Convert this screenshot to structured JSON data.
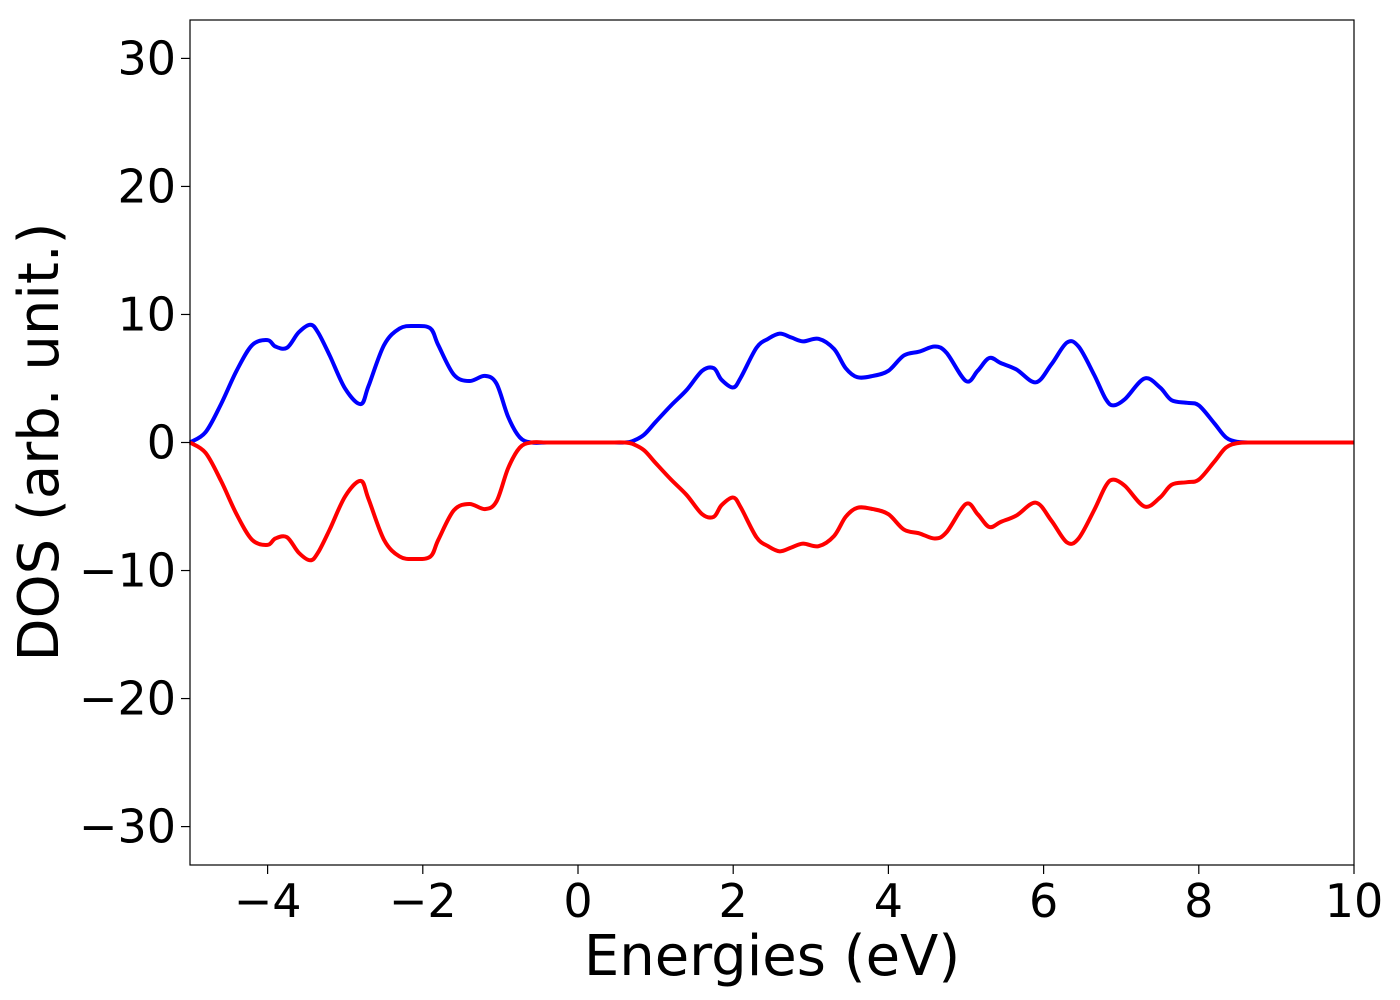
{
  "chart_data": {
    "type": "line",
    "title": "",
    "xlabel": "Energies (eV)",
    "ylabel": "DOS (arb. unit.)",
    "xlim": [
      -5,
      10
    ],
    "ylim": [
      -33,
      33
    ],
    "xticks": [
      -4,
      -2,
      0,
      2,
      4,
      6,
      8,
      10
    ],
    "xtick_labels": [
      "−4",
      "−2",
      "0",
      "2",
      "4",
      "6",
      "8",
      "10"
    ],
    "yticks": [
      30,
      20,
      10,
      0,
      -10,
      -20,
      -30
    ],
    "ytick_labels": [
      "30",
      "20",
      "10",
      "0",
      "−10",
      "−20",
      "−30"
    ],
    "grid": false,
    "legend": null,
    "series": [
      {
        "color": "#0000ff",
        "x": [
          -5.0,
          -4.8,
          -4.6,
          -4.4,
          -4.2,
          -4.0,
          -3.9,
          -3.75,
          -3.6,
          -3.45,
          -3.35,
          -3.2,
          -3.0,
          -2.8,
          -2.7,
          -2.5,
          -2.3,
          -2.1,
          -1.9,
          -1.8,
          -1.6,
          -1.4,
          -1.2,
          -1.05,
          -0.9,
          -0.75,
          -0.6,
          -0.4,
          -0.2,
          0.0,
          0.2,
          0.4,
          0.6,
          0.7,
          0.85,
          1.0,
          1.2,
          1.4,
          1.6,
          1.75,
          1.85,
          2.0,
          2.1,
          2.3,
          2.45,
          2.6,
          2.75,
          2.9,
          3.1,
          3.3,
          3.45,
          3.6,
          3.8,
          4.0,
          4.2,
          4.4,
          4.6,
          4.75,
          5.0,
          5.15,
          5.3,
          5.45,
          5.65,
          5.9,
          6.1,
          6.3,
          6.45,
          6.65,
          6.8,
          6.9,
          7.05,
          7.3,
          7.5,
          7.65,
          7.85,
          8.0,
          8.2,
          8.35,
          8.5,
          8.7,
          9.0,
          9.5,
          10.0
        ],
        "y": [
          0.0,
          0.8,
          3.0,
          5.6,
          7.6,
          8.0,
          7.5,
          7.4,
          8.6,
          9.2,
          8.6,
          6.8,
          4.2,
          3.0,
          4.4,
          7.6,
          8.9,
          9.1,
          8.9,
          7.6,
          5.3,
          4.8,
          5.2,
          4.6,
          2.0,
          0.4,
          0.0,
          0.0,
          0.0,
          0.0,
          0.0,
          0.0,
          0.0,
          0.1,
          0.6,
          1.6,
          2.9,
          4.1,
          5.6,
          5.8,
          4.9,
          4.3,
          5.1,
          7.4,
          8.1,
          8.5,
          8.2,
          7.9,
          8.1,
          7.3,
          5.8,
          5.1,
          5.2,
          5.6,
          6.8,
          7.1,
          7.5,
          7.0,
          4.8,
          5.6,
          6.6,
          6.2,
          5.7,
          4.7,
          6.1,
          7.8,
          7.5,
          5.3,
          3.4,
          2.9,
          3.4,
          5.0,
          4.3,
          3.3,
          3.1,
          2.9,
          1.5,
          0.4,
          0.05,
          0.0,
          0.0,
          0.0,
          0.0
        ]
      },
      {
        "color": "#ff0000",
        "x": [
          -5.0,
          -4.8,
          -4.6,
          -4.4,
          -4.2,
          -4.0,
          -3.9,
          -3.75,
          -3.6,
          -3.45,
          -3.35,
          -3.2,
          -3.0,
          -2.8,
          -2.7,
          -2.5,
          -2.3,
          -2.1,
          -1.9,
          -1.8,
          -1.6,
          -1.4,
          -1.2,
          -1.05,
          -0.9,
          -0.75,
          -0.6,
          -0.4,
          -0.2,
          0.0,
          0.2,
          0.4,
          0.6,
          0.7,
          0.85,
          1.0,
          1.2,
          1.4,
          1.6,
          1.75,
          1.85,
          2.0,
          2.1,
          2.3,
          2.45,
          2.6,
          2.75,
          2.9,
          3.1,
          3.3,
          3.45,
          3.6,
          3.8,
          4.0,
          4.2,
          4.4,
          4.6,
          4.75,
          5.0,
          5.15,
          5.3,
          5.45,
          5.65,
          5.9,
          6.1,
          6.3,
          6.45,
          6.65,
          6.8,
          6.9,
          7.05,
          7.3,
          7.5,
          7.65,
          7.85,
          8.0,
          8.2,
          8.35,
          8.5,
          8.7,
          9.0,
          9.5,
          10.0
        ],
        "y": [
          0.0,
          -0.8,
          -3.0,
          -5.6,
          -7.6,
          -8.0,
          -7.5,
          -7.4,
          -8.6,
          -9.2,
          -8.6,
          -6.8,
          -4.2,
          -3.0,
          -4.4,
          -7.6,
          -8.9,
          -9.1,
          -8.9,
          -7.6,
          -5.3,
          -4.8,
          -5.2,
          -4.6,
          -2.0,
          -0.4,
          0.0,
          0.0,
          0.0,
          0.0,
          0.0,
          0.0,
          0.0,
          -0.1,
          -0.6,
          -1.6,
          -2.9,
          -4.1,
          -5.6,
          -5.8,
          -4.9,
          -4.3,
          -5.1,
          -7.4,
          -8.1,
          -8.5,
          -8.2,
          -7.9,
          -8.1,
          -7.3,
          -5.8,
          -5.1,
          -5.2,
          -5.6,
          -6.8,
          -7.1,
          -7.5,
          -7.0,
          -4.8,
          -5.6,
          -6.6,
          -6.2,
          -5.7,
          -4.7,
          -6.1,
          -7.8,
          -7.5,
          -5.3,
          -3.4,
          -2.9,
          -3.4,
          -5.0,
          -4.3,
          -3.3,
          -3.1,
          -2.9,
          -1.5,
          -0.4,
          -0.05,
          0.0,
          0.0,
          0.0,
          0.0
        ]
      }
    ]
  }
}
